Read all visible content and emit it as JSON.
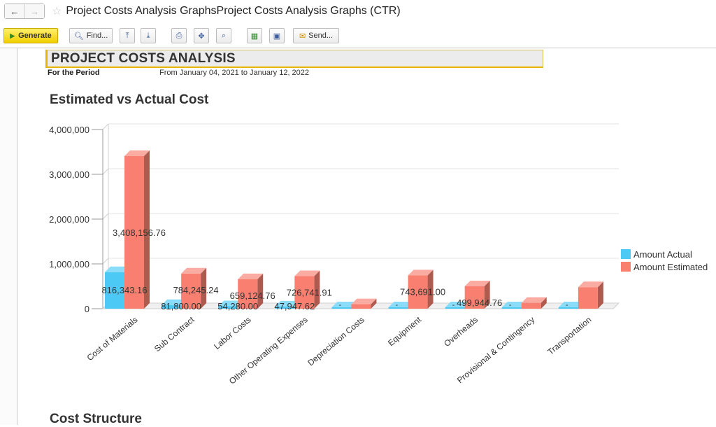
{
  "window": {
    "title": "Project Costs Analysis GraphsProject Costs Analysis Graphs (CTR)"
  },
  "nav": {
    "back": "←",
    "forward": "→",
    "favorite": "☆"
  },
  "toolbar": {
    "generate_label": "Generate",
    "find_label": "Find...",
    "send_label": "Send..."
  },
  "report": {
    "title": "PROJECT COSTS ANALYSIS",
    "period_label": "For the Period",
    "period_value": "From January 04, 2021 to January 12, 2022",
    "section1": "Estimated vs Actual Cost",
    "section2": "Cost Structure"
  },
  "colors": {
    "actual": "#4dc9f6",
    "estimated": "#f98070",
    "accent": "#e7b500"
  },
  "chart_data": {
    "type": "bar",
    "categories": [
      "Cost of Materials",
      "Sub Contract",
      "Labor Costs",
      "Other Operating Expenses",
      "Depreciation Costs",
      "Equipment",
      "Overheads",
      "Provisional & Contingency",
      "Transportation"
    ],
    "series": [
      {
        "name": "Amount Actual",
        "values": [
          816343.16,
          81800.0,
          54280.0,
          47947.62,
          0,
          0,
          0,
          0,
          0
        ],
        "labels": [
          "816,343.16",
          "81,800.00",
          "54,280.00",
          "47,947.62",
          "",
          "",
          "",
          "",
          ""
        ]
      },
      {
        "name": "Amount Estimated",
        "values": [
          3408156.76,
          784245.24,
          659124.76,
          726741.91,
          100000,
          743691.0,
          499944.76,
          130000,
          480000
        ],
        "labels": [
          "3,408,156.76",
          "784,245.24",
          "659,124.76",
          "726,741.91",
          "",
          "743,691.00",
          "499,944.76",
          "",
          ""
        ]
      }
    ],
    "ylim": [
      0,
      4000000
    ],
    "yticks": [
      0,
      1000000,
      2000000,
      3000000,
      4000000
    ],
    "ytick_labels": [
      "0",
      "1,000,000",
      "2,000,000",
      "3,000,000",
      "4,000,000"
    ],
    "grid": true,
    "legend": "right"
  }
}
